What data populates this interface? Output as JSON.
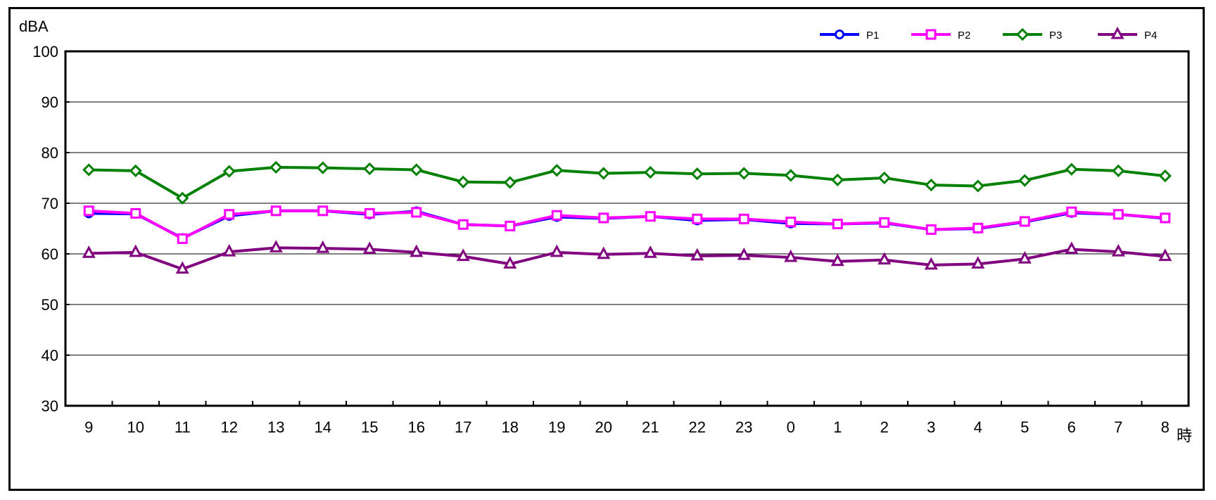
{
  "chart_data": {
    "type": "line",
    "ylabel": "dBA",
    "xlabel": "時",
    "ylim": [
      30,
      100
    ],
    "yticks": [
      30,
      40,
      50,
      60,
      70,
      80,
      90,
      100
    ],
    "grid": true,
    "legend_position": "top-right",
    "categories": [
      "9",
      "10",
      "11",
      "12",
      "13",
      "14",
      "15",
      "16",
      "17",
      "18",
      "19",
      "20",
      "21",
      "22",
      "23",
      "0",
      "1",
      "2",
      "3",
      "4",
      "5",
      "6",
      "7",
      "8"
    ],
    "series": [
      {
        "name": "P1",
        "color": "#0000ff",
        "marker": "circle",
        "values": [
          68.0,
          67.9,
          63.1,
          67.5,
          68.5,
          68.5,
          67.8,
          68.4,
          65.8,
          65.5,
          67.3,
          67.0,
          67.4,
          66.6,
          66.8,
          66.0,
          65.9,
          66.1,
          64.8,
          65.0,
          66.3,
          68.1,
          67.8,
          67.0
        ]
      },
      {
        "name": "P2",
        "color": "#ff00ff",
        "marker": "square",
        "values": [
          68.5,
          68.0,
          63.0,
          67.8,
          68.5,
          68.5,
          68.0,
          68.2,
          65.8,
          65.5,
          67.6,
          67.1,
          67.4,
          66.9,
          66.9,
          66.3,
          65.9,
          66.2,
          64.8,
          65.1,
          66.4,
          68.3,
          67.8,
          67.1
        ]
      },
      {
        "name": "P3",
        "color": "#008000",
        "marker": "diamond",
        "values": [
          76.6,
          76.4,
          71.0,
          76.3,
          77.1,
          77.0,
          76.8,
          76.6,
          74.2,
          74.1,
          76.5,
          75.9,
          76.1,
          75.8,
          75.9,
          75.5,
          74.6,
          75.0,
          73.6,
          73.4,
          74.5,
          76.7,
          76.4,
          75.4
        ]
      },
      {
        "name": "P4",
        "color": "#800080",
        "marker": "triangle",
        "values": [
          60.1,
          60.3,
          57.0,
          60.4,
          61.2,
          61.1,
          60.9,
          60.3,
          59.5,
          58.0,
          60.3,
          59.9,
          60.1,
          59.6,
          59.7,
          59.3,
          58.5,
          58.8,
          57.8,
          58.0,
          59.0,
          60.9,
          60.4,
          59.5
        ]
      }
    ]
  }
}
